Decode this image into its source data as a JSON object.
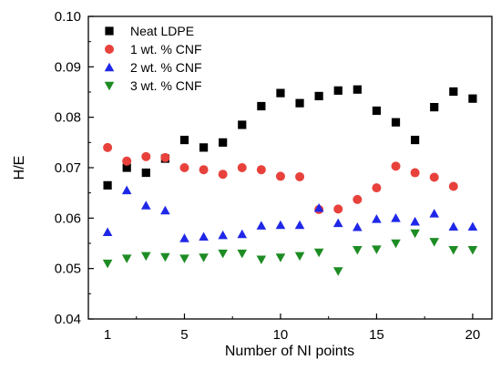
{
  "chart_data": {
    "type": "scatter",
    "title": "",
    "xlabel": "Number of NI points",
    "ylabel": "H/E",
    "xlim": [
      0,
      21
    ],
    "ylim": [
      0.04,
      0.1
    ],
    "x_ticks": [
      5,
      10,
      15,
      20
    ],
    "x_tick_labels": [
      "1",
      "5",
      "10",
      "15",
      "20"
    ],
    "x_tick_label_values": [
      1,
      5,
      10,
      15,
      20
    ],
    "y_ticks": [
      0.04,
      0.05,
      0.06,
      0.07,
      0.08,
      0.09,
      0.1
    ],
    "y_tick_labels": [
      "0.04",
      "0.05",
      "0.06",
      "0.07",
      "0.08",
      "0.09",
      "0.10"
    ],
    "grid": false,
    "legend_position": "top-left",
    "series": [
      {
        "name": "Neat LDPE",
        "marker": "square",
        "color": "#000000",
        "x": [
          1,
          2,
          3,
          4,
          5,
          6,
          7,
          8,
          9,
          10,
          11,
          12,
          13,
          14,
          15,
          16,
          17,
          18,
          19,
          20
        ],
        "y": [
          0.0665,
          0.07,
          0.069,
          0.0718,
          0.0755,
          0.074,
          0.075,
          0.0785,
          0.0822,
          0.0848,
          0.0828,
          0.0842,
          0.0853,
          0.0855,
          0.0813,
          0.079,
          0.0755,
          0.082,
          0.0851,
          0.0837
        ]
      },
      {
        "name": "1 wt. % CNF",
        "marker": "circle",
        "color": "#e8413c",
        "x": [
          1,
          2,
          3,
          4,
          5,
          6,
          7,
          8,
          9,
          10,
          11,
          12,
          13,
          14,
          15,
          16,
          17,
          18,
          19
        ],
        "y": [
          0.074,
          0.0713,
          0.0722,
          0.072,
          0.07,
          0.0696,
          0.0687,
          0.07,
          0.0696,
          0.0683,
          0.0682,
          0.0617,
          0.0618,
          0.0637,
          0.066,
          0.0703,
          0.069,
          0.0681,
          0.0663
        ]
      },
      {
        "name": "2 wt. % CNF",
        "marker": "triangle-up",
        "color": "#1f27e8",
        "x": [
          1,
          2,
          3,
          4,
          5,
          6,
          7,
          8,
          9,
          10,
          11,
          12,
          13,
          14,
          15,
          16,
          17,
          18,
          19,
          20
        ],
        "y": [
          0.0572,
          0.0655,
          0.0625,
          0.0615,
          0.056,
          0.0563,
          0.0566,
          0.0568,
          0.0585,
          0.0586,
          0.0586,
          0.062,
          0.059,
          0.0582,
          0.0598,
          0.06,
          0.0593,
          0.0609,
          0.0583,
          0.0583
        ]
      },
      {
        "name": "3 wt. % CNF",
        "marker": "triangle-down",
        "color": "#1e8c24",
        "x": [
          1,
          2,
          3,
          4,
          5,
          6,
          7,
          8,
          9,
          10,
          11,
          12,
          13,
          14,
          15,
          16,
          17,
          18,
          19,
          20
        ],
        "y": [
          0.051,
          0.052,
          0.0525,
          0.0523,
          0.052,
          0.0522,
          0.053,
          0.053,
          0.0518,
          0.0522,
          0.0525,
          0.0532,
          0.0495,
          0.0537,
          0.0538,
          0.055,
          0.057,
          0.0553,
          0.0537,
          0.0537
        ]
      }
    ]
  }
}
